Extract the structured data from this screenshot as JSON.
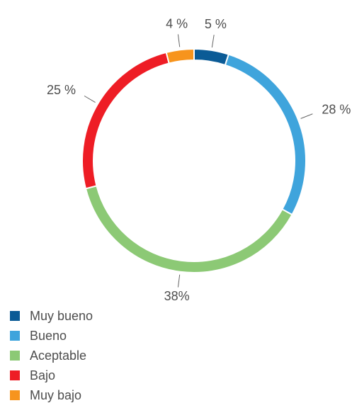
{
  "chart_data": {
    "type": "donut",
    "categories": [
      "Muy bueno",
      "Bueno",
      "Aceptable",
      "Bajo",
      "Muy bajo"
    ],
    "values": [
      5,
      28,
      38,
      25,
      4
    ],
    "value_labels": [
      "5 %",
      "28 %",
      "38%",
      "25 %",
      "4 %"
    ],
    "colors": [
      "#0b5b96",
      "#3fa4dc",
      "#8cc975",
      "#ee1d25",
      "#f7941d"
    ],
    "legend": "bottom-left"
  }
}
